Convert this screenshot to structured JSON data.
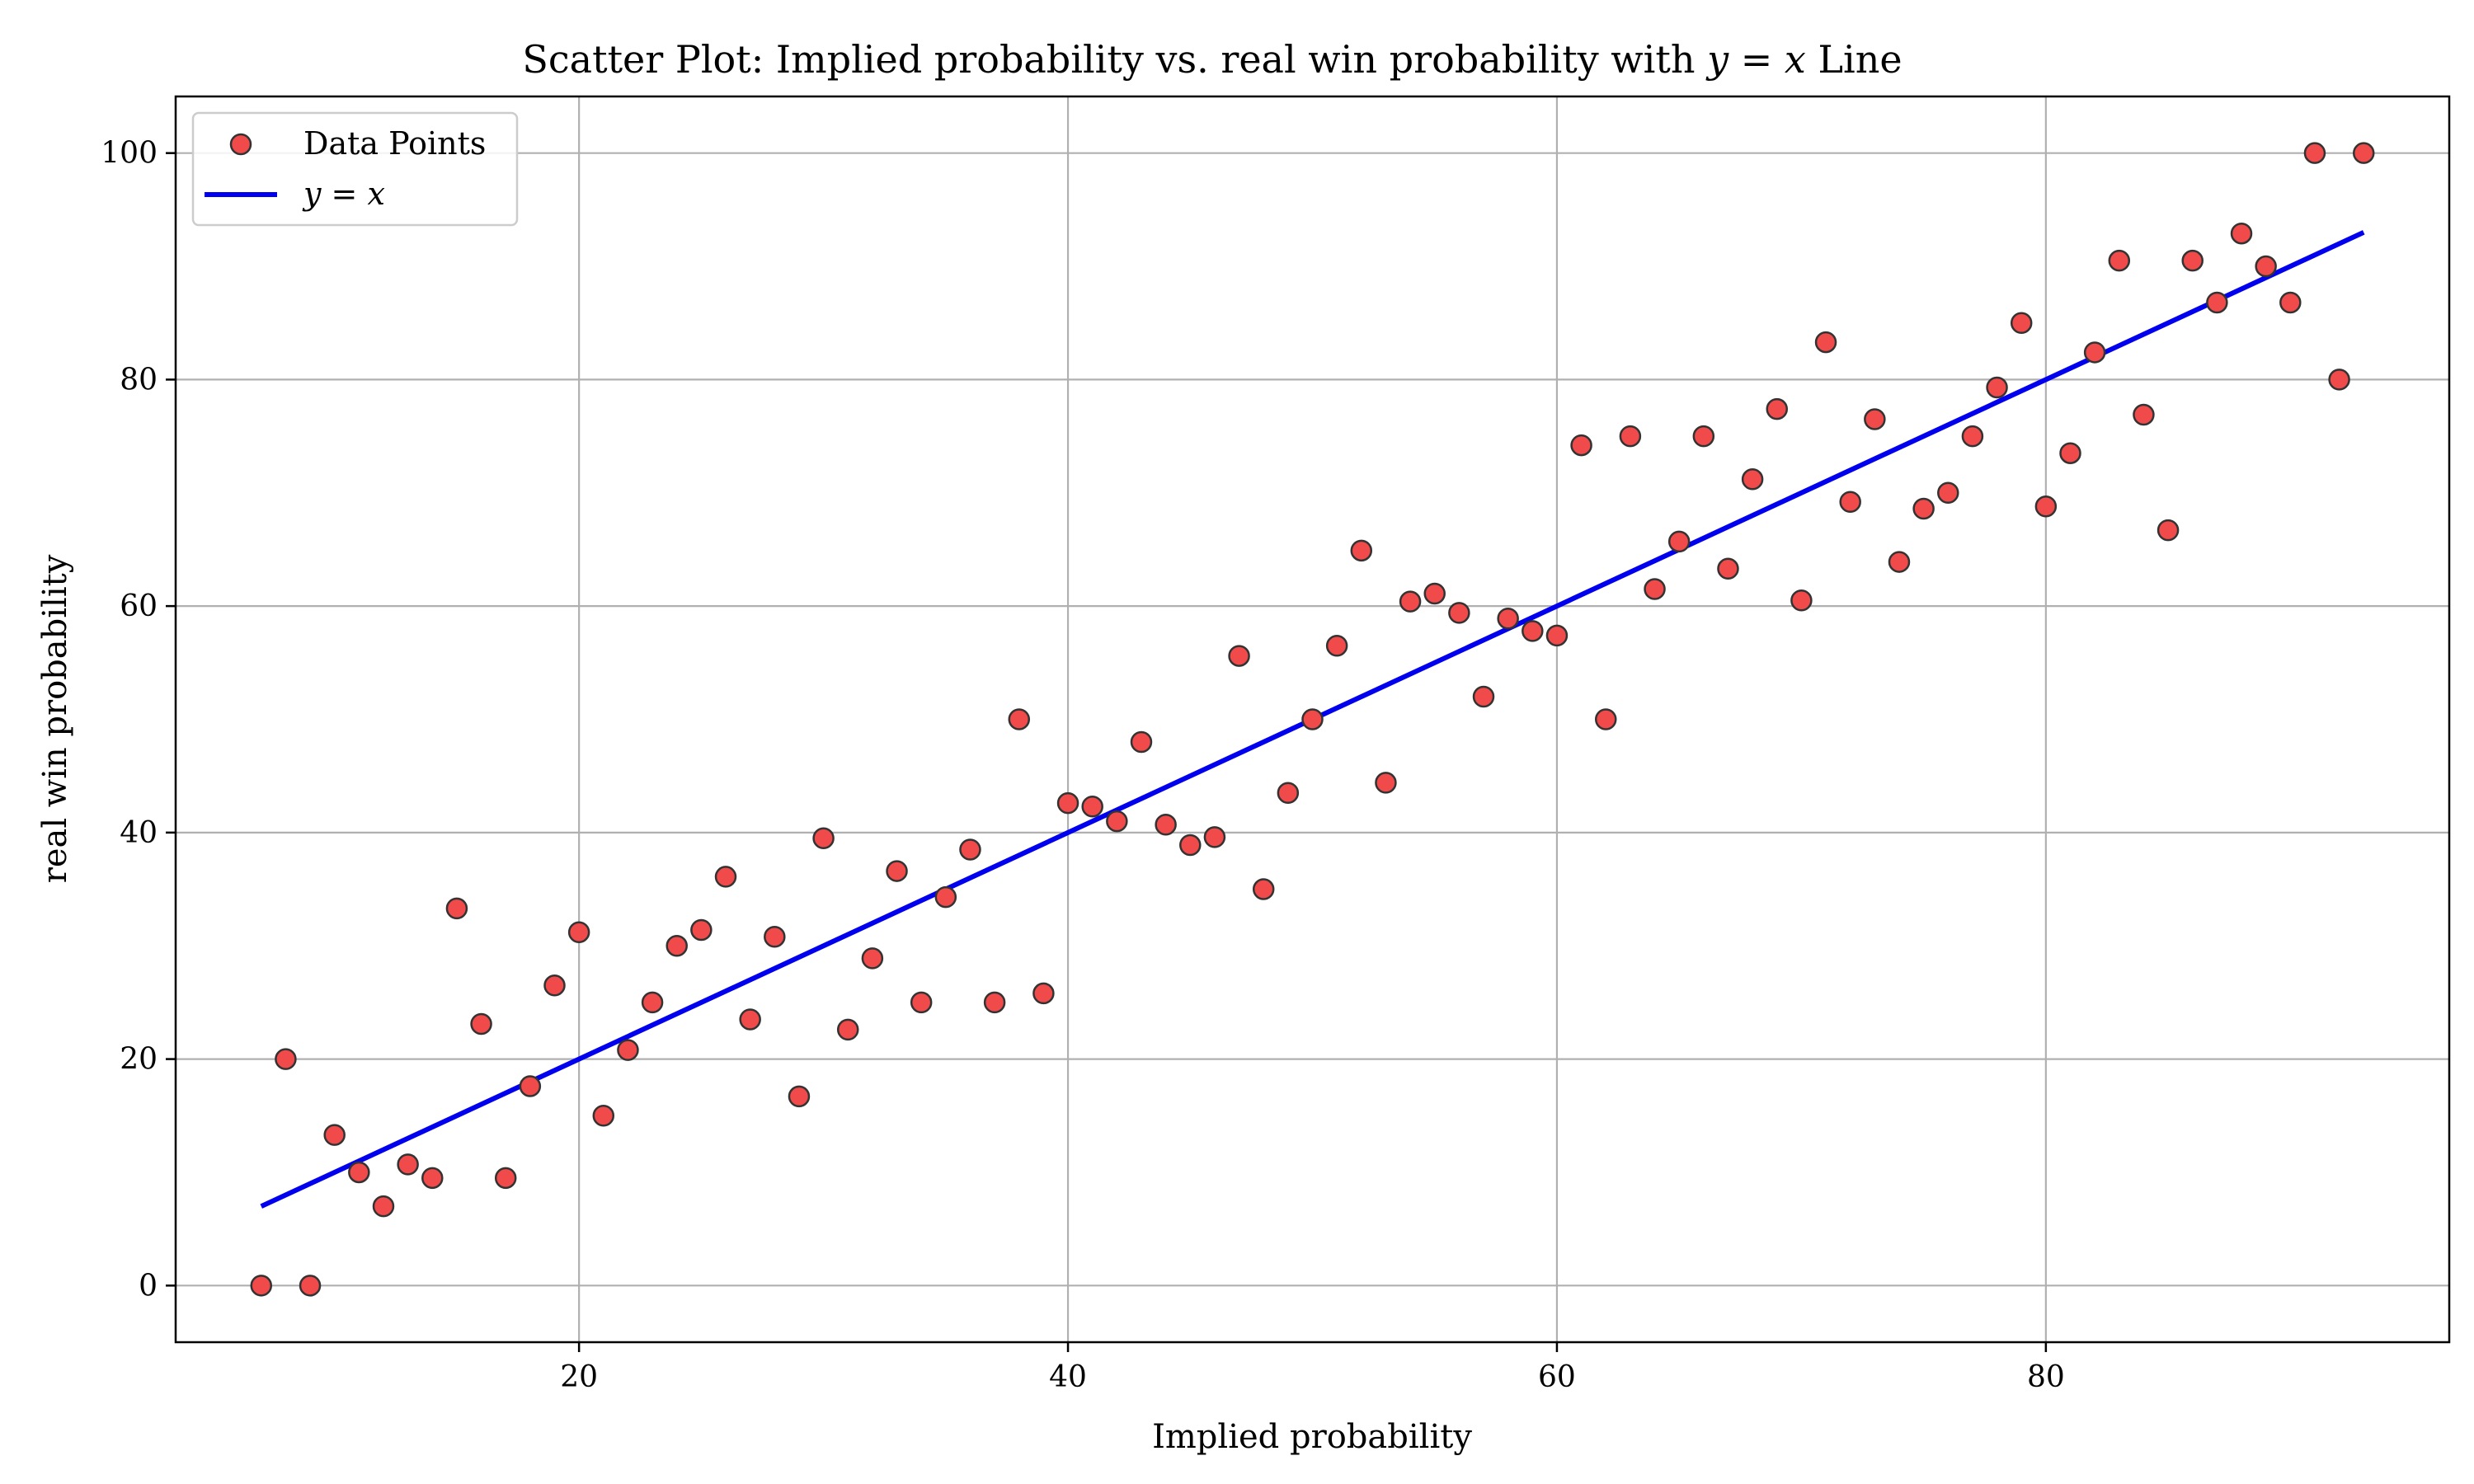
{
  "chart_data": {
    "type": "scatter",
    "title": "Scatter Plot: Implied probability vs. real win probability with",
    "title_math": "y = x",
    "title_suffix": "Line",
    "xlabel": "Implied probability",
    "ylabel": "real win probability",
    "xlim": [
      3.5,
      96.5
    ],
    "ylim": [
      -5,
      105
    ],
    "xticks": [
      20,
      40,
      60,
      80
    ],
    "yticks": [
      0,
      20,
      40,
      60,
      80,
      100
    ],
    "grid": true,
    "legend_position": "top-left",
    "legend": [
      {
        "label": "Data Points",
        "kind": "marker"
      },
      {
        "label": "y = x",
        "kind": "line"
      }
    ],
    "colors": {
      "points_fill": "#f04a4a",
      "points_edge": "#333333",
      "line": "#0000ee",
      "grid": "#b0b0b0"
    },
    "series": [
      {
        "name": "Data Points",
        "kind": "scatter",
        "x": [
          7,
          8,
          9,
          10,
          11,
          12,
          13,
          14,
          15,
          16,
          17,
          18,
          19,
          20,
          21,
          22,
          23,
          24,
          25,
          26,
          27,
          28,
          29,
          30,
          31,
          32,
          33,
          34,
          35,
          36,
          37,
          38,
          39,
          40,
          41,
          42,
          43,
          44,
          45,
          46,
          47,
          48,
          49,
          50,
          51,
          52,
          53,
          54,
          55,
          56,
          57,
          58,
          59,
          60,
          61,
          62,
          63,
          64,
          65,
          66,
          67,
          68,
          69,
          70,
          71,
          72,
          73,
          74,
          75,
          76,
          77,
          78,
          79,
          80,
          81,
          82,
          83,
          84,
          85,
          86,
          87,
          88,
          89,
          90,
          91,
          92,
          93
        ],
        "y": [
          0,
          20,
          0,
          13.3,
          10,
          7,
          10.7,
          9.5,
          33.3,
          23.1,
          9.5,
          17.6,
          26.5,
          31.2,
          15,
          20.8,
          25,
          30,
          31.4,
          36.1,
          23.5,
          30.8,
          16.7,
          39.5,
          22.6,
          28.9,
          36.6,
          25,
          34.3,
          38.5,
          25,
          50,
          25.8,
          42.6,
          42.3,
          41,
          48,
          40.7,
          38.9,
          39.6,
          55.6,
          35,
          43.5,
          50,
          56.5,
          64.9,
          44.4,
          60.4,
          61.1,
          59.4,
          52,
          58.9,
          57.8,
          57.4,
          74.2,
          50,
          75,
          61.5,
          65.7,
          75,
          63.3,
          71.2,
          77.4,
          60.5,
          83.3,
          69.2,
          76.5,
          63.9,
          68.6,
          70,
          75,
          79.3,
          85,
          68.8,
          73.5,
          82.4,
          90.5,
          76.9,
          66.7,
          90.5,
          86.8,
          92.9,
          90,
          86.8,
          100,
          80,
          100
        ]
      },
      {
        "name": "y = x",
        "kind": "line",
        "x": [
          7,
          93
        ],
        "y": [
          7,
          93
        ]
      }
    ]
  }
}
